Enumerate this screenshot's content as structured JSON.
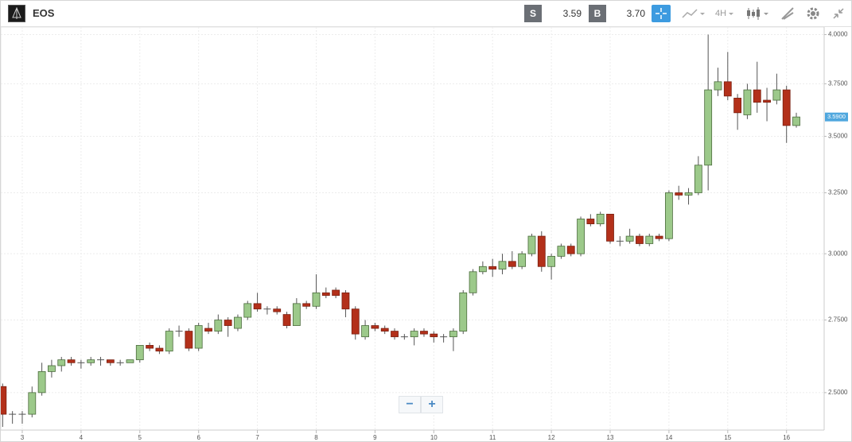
{
  "toolbar": {
    "symbol": "EOS",
    "sell_label": "S",
    "sell_price": "3.59",
    "buy_label": "B",
    "buy_price": "3.70",
    "timeframe": "4H"
  },
  "zoom": {
    "zoom_out": "−",
    "zoom_in": "+"
  },
  "chart_data": {
    "type": "candlestick",
    "log_scale": true,
    "grid": true,
    "up_color": "#9cc98a",
    "down_color": "#b3301a",
    "xlim": [
      2.635,
      16.64
    ],
    "xticks": [
      3,
      4,
      5,
      6,
      7,
      8,
      9,
      10,
      11,
      12,
      13,
      14,
      15,
      16
    ],
    "ylim": [
      2.38,
      4.04
    ],
    "yticks": [
      {
        "value": 2.5,
        "label": "2.5000"
      },
      {
        "value": 2.75,
        "label": "2.7500"
      },
      {
        "value": 3,
        "label": "3.0000"
      },
      {
        "value": 3.25,
        "label": "3.2500"
      },
      {
        "value": 3.5,
        "label": "3.5000"
      },
      {
        "value": 3.75,
        "label": "3.7500"
      },
      {
        "value": 4,
        "label": "4.0000"
      }
    ],
    "last_price": {
      "value": 3.59,
      "label": "3.5900"
    },
    "x": [
      2.6667,
      2.8333,
      3,
      3.1667,
      3.3333,
      3.5,
      3.6667,
      3.8333,
      4,
      4.1667,
      4.3333,
      4.5,
      4.6667,
      4.8333,
      5,
      5.1667,
      5.3333,
      5.5,
      5.6667,
      5.8333,
      6,
      6.1667,
      6.3333,
      6.5,
      6.6667,
      6.8333,
      7,
      7.1667,
      7.3333,
      7.5,
      7.6667,
      7.8333,
      8,
      8.1667,
      8.3333,
      8.5,
      8.6667,
      8.8333,
      9,
      9.1667,
      9.3333,
      9.5,
      9.6667,
      9.8333,
      10,
      10.1667,
      10.3333,
      10.5,
      10.6667,
      10.8333,
      11,
      11.1667,
      11.3333,
      11.5,
      11.6667,
      11.8333,
      12,
      12.1667,
      12.3333,
      12.5,
      12.6667,
      12.8333,
      13,
      13.1667,
      13.3333,
      13.5,
      13.6667,
      13.8333,
      14,
      14.1667,
      14.3333,
      14.5,
      14.6667,
      14.8333,
      15,
      15.1667,
      15.3333,
      15.5,
      15.6667,
      15.8333,
      16,
      16.1667
    ],
    "open": [
      2.52,
      2.43,
      2.43,
      2.43,
      2.5,
      2.57,
      2.59,
      2.61,
      2.6,
      2.6,
      2.61,
      2.61,
      2.6,
      2.6,
      2.61,
      2.66,
      2.65,
      2.64,
      2.71,
      2.71,
      2.65,
      2.72,
      2.71,
      2.75,
      2.72,
      2.76,
      2.81,
      2.79,
      2.79,
      2.77,
      2.73,
      2.81,
      2.8,
      2.85,
      2.86,
      2.85,
      2.79,
      2.69,
      2.73,
      2.72,
      2.71,
      2.69,
      2.69,
      2.71,
      2.7,
      2.69,
      2.69,
      2.71,
      2.85,
      2.93,
      2.95,
      2.94,
      2.97,
      2.95,
      3.0,
      3.07,
      2.95,
      2.99,
      3.03,
      3.0,
      3.14,
      3.12,
      3.16,
      3.05,
      3.05,
      3.07,
      3.04,
      3.07,
      3.06,
      3.25,
      3.24,
      3.25,
      3.37,
      3.72,
      3.76,
      3.68,
      3.6,
      3.72,
      3.67,
      3.67,
      3.72,
      3.55
    ],
    "high": [
      2.53,
      2.44,
      2.44,
      2.52,
      2.6,
      2.61,
      2.62,
      2.62,
      2.61,
      2.62,
      2.62,
      2.61,
      2.61,
      2.61,
      2.66,
      2.67,
      2.66,
      2.72,
      2.73,
      2.72,
      2.74,
      2.74,
      2.77,
      2.76,
      2.77,
      2.82,
      2.85,
      2.8,
      2.8,
      2.78,
      2.83,
      2.82,
      2.92,
      2.87,
      2.87,
      2.86,
      2.8,
      2.75,
      2.74,
      2.73,
      2.72,
      2.7,
      2.72,
      2.72,
      2.71,
      2.7,
      2.72,
      2.86,
      2.94,
      2.97,
      2.98,
      3.0,
      3.01,
      3.01,
      3.08,
      3.09,
      3.0,
      3.04,
      3.04,
      3.15,
      3.16,
      3.17,
      3.16,
      3.07,
      3.1,
      3.08,
      3.08,
      3.08,
      3.26,
      3.28,
      3.27,
      3.41,
      4.0,
      3.83,
      3.91,
      3.7,
      3.75,
      3.86,
      3.73,
      3.8,
      3.74,
      3.61
    ],
    "low": [
      2.39,
      2.4,
      2.4,
      2.42,
      2.49,
      2.55,
      2.57,
      2.59,
      2.58,
      2.59,
      2.59,
      2.59,
      2.59,
      2.6,
      2.6,
      2.64,
      2.63,
      2.63,
      2.69,
      2.64,
      2.64,
      2.7,
      2.7,
      2.69,
      2.71,
      2.75,
      2.78,
      2.77,
      2.77,
      2.72,
      2.73,
      2.79,
      2.79,
      2.83,
      2.83,
      2.76,
      2.68,
      2.68,
      2.71,
      2.7,
      2.68,
      2.68,
      2.66,
      2.69,
      2.67,
      2.67,
      2.64,
      2.7,
      2.84,
      2.92,
      2.91,
      2.92,
      2.94,
      2.94,
      2.99,
      2.93,
      2.9,
      2.98,
      2.99,
      2.99,
      3.11,
      3.11,
      3.04,
      3.03,
      3.04,
      3.03,
      3.03,
      3.05,
      3.05,
      3.22,
      3.2,
      3.24,
      3.26,
      3.69,
      3.67,
      3.53,
      3.58,
      3.61,
      3.57,
      3.65,
      3.47,
      3.54
    ],
    "close": [
      2.43,
      2.43,
      2.43,
      2.5,
      2.57,
      2.59,
      2.61,
      2.6,
      2.6,
      2.61,
      2.61,
      2.6,
      2.6,
      2.61,
      2.66,
      2.65,
      2.64,
      2.71,
      2.71,
      2.65,
      2.73,
      2.71,
      2.75,
      2.73,
      2.76,
      2.81,
      2.79,
      2.79,
      2.78,
      2.73,
      2.81,
      2.8,
      2.85,
      2.84,
      2.84,
      2.79,
      2.7,
      2.73,
      2.72,
      2.71,
      2.69,
      2.69,
      2.71,
      2.7,
      2.69,
      2.69,
      2.71,
      2.85,
      2.93,
      2.95,
      2.94,
      2.97,
      2.95,
      3.0,
      3.07,
      2.95,
      2.99,
      3.03,
      3.0,
      3.14,
      3.12,
      3.16,
      3.05,
      3.05,
      3.07,
      3.04,
      3.07,
      3.06,
      3.25,
      3.24,
      3.25,
      3.37,
      3.72,
      3.76,
      3.69,
      3.61,
      3.72,
      3.66,
      3.66,
      3.72,
      3.55,
      3.59
    ]
  }
}
